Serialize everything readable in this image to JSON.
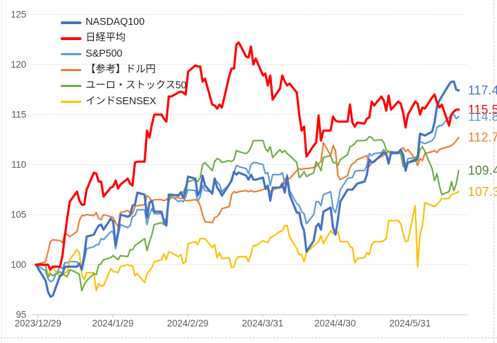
{
  "chart_data": {
    "type": "line",
    "title": "",
    "grid": true,
    "legend_position": "top-left",
    "y_axis": {
      "min": 95,
      "max": 125,
      "ticks": [
        95,
        100,
        105,
        110,
        115,
        120,
        125
      ]
    },
    "x_axis": {
      "tick_labels": [
        {
          "label": "2023/12/29",
          "day": 0
        },
        {
          "label": "2024/1/29",
          "day": 31
        },
        {
          "label": "2024/2/29",
          "day": 62
        },
        {
          "label": "2024/3/31",
          "day": 93
        },
        {
          "label": "2024/4/30",
          "day": 123
        },
        {
          "label": "2024/5/31",
          "day": 154
        }
      ]
    },
    "day_offsets": [
      0,
      4,
      5,
      6,
      7,
      10,
      11,
      12,
      13,
      14,
      17,
      18,
      19,
      20,
      21,
      24,
      25,
      26,
      27,
      28,
      31,
      32,
      33,
      34,
      35,
      38,
      39,
      40,
      41,
      42,
      45,
      46,
      47,
      48,
      49,
      52,
      53,
      54,
      55,
      56,
      59,
      60,
      61,
      62,
      63,
      66,
      67,
      68,
      69,
      70,
      73,
      74,
      75,
      76,
      77,
      80,
      81,
      82,
      83,
      84,
      87,
      88,
      89,
      90,
      91,
      94,
      95,
      96,
      97,
      98,
      101,
      102,
      103,
      104,
      105,
      108,
      109,
      110,
      111,
      112,
      115,
      116,
      117,
      118,
      119,
      122,
      123,
      124,
      125,
      126,
      129,
      130,
      131,
      132,
      133,
      136,
      137,
      138,
      139,
      140,
      143,
      144,
      145,
      146,
      147,
      150,
      151,
      152,
      153,
      154,
      157,
      158,
      159,
      160,
      161,
      164,
      165,
      166,
      167,
      168,
      171,
      172,
      173,
      174,
      175
    ],
    "draw_order": [
      2,
      3,
      5,
      4,
      0,
      1
    ],
    "series": [
      {
        "name": "NASDAQ100",
        "color": "#4472C4",
        "label_color": "#4472C4",
        "width": 3.2,
        "end_label": "117.4",
        "values": [
          100,
          98.4,
          97.3,
          96.8,
          96.9,
          98.9,
          99.1,
          99.8,
          99.8,
          99.8,
          99.8,
          100.1,
          99.5,
          100.9,
          102.8,
          103.0,
          103.5,
          103.9,
          104.0,
          103.5,
          104.6,
          104.3,
          101.9,
          103.2,
          105.0,
          104.8,
          104.9,
          105.9,
          106.0,
          107.2,
          107.0,
          104.7,
          106.2,
          106.4,
          105.3,
          105.3,
          104.3,
          103.9,
          107.0,
          107.0,
          106.9,
          107.2,
          106.7,
          107.4,
          108.8,
          108.6,
          106.9,
          107.4,
          108.9,
          107.9,
          107.1,
          108.6,
          107.7,
          107.4,
          106.9,
          108.0,
          108.4,
          109.3,
          109.0,
          109.2,
          108.9,
          108.5,
          109.0,
          108.5,
          108.5,
          108.7,
          107.6,
          107.9,
          106.4,
          107.7,
          107.7,
          108.1,
          107.2,
          108.8,
          107.0,
          105.2,
          105.2,
          104.0,
          103.4,
          101.3,
          102.4,
          103.8,
          104.1,
          103.5,
          105.3,
          105.7,
          103.7,
          103.0,
          104.5,
          106.3,
          107.5,
          107.5,
          107.5,
          107.8,
          108.1,
          108.3,
          109.0,
          110.5,
          110.2,
          110.3,
          111.0,
          111.2,
          111.1,
          110.1,
          111.2,
          111.2,
          111.5,
          111.0,
          109.4,
          110.2,
          110.4,
          110.7,
          113.1,
          113.0,
          112.9,
          113.3,
          114.2,
          115.8,
          116.4,
          116.8,
          118.0,
          118.3,
          118.3,
          117.5,
          117.4
        ]
      },
      {
        "name": "日経平均",
        "color": "#FF0000",
        "label_color": "#FF0000",
        "width": 3.2,
        "end_label": "115.5",
        "values": [
          100,
          100.0,
          100.0,
          99.5,
          99.8,
          99.8,
          100.9,
          102.9,
          104.7,
          106.3,
          107.3,
          106.4,
          106.0,
          106.0,
          107.5,
          109.2,
          109.1,
          108.3,
          108.3,
          106.8,
          107.7,
          107.8,
          108.4,
          107.6,
          108.0,
          108.6,
          108.1,
          107.9,
          110.2,
          110.3,
          110.3,
          113.4,
          112.7,
          114.0,
          115.0,
          115.0,
          114.6,
          114.3,
          116.8,
          116.8,
          117.2,
          117.3,
          117.2,
          117.0,
          119.3,
          119.9,
          119.8,
          119.8,
          118.3,
          118.6,
          116.0,
          115.9,
          115.6,
          116.0,
          115.7,
          118.8,
          119.6,
          119.6,
          122.0,
          122.2,
          120.8,
          120.7,
          121.8,
          120.0,
          120.6,
          118.9,
          119.1,
          117.9,
          118.9,
          116.5,
          117.6,
          118.9,
          118.3,
          117.9,
          118.1,
          117.2,
          115.0,
          113.4,
          113.8,
          110.8,
          111.9,
          112.2,
          114.9,
          112.4,
          113.4,
          113.4,
          114.8,
          114.4,
          114.3,
          114.3,
          114.3,
          116.0,
          114.2,
          113.8,
          114.2,
          114.1,
          114.6,
          114.7,
          116.3,
          115.9,
          116.8,
          116.4,
          115.4,
          116.9,
          115.5,
          116.3,
          116.1,
          115.2,
          113.7,
          115.0,
          116.3,
          116.1,
          115.0,
          115.7,
          115.6,
          116.7,
          117.0,
          116.2,
          115.7,
          116.0,
          113.9,
          115.0,
          115.3,
          115.5,
          115.5
        ]
      },
      {
        "name": "S&P500",
        "color": "#5B9BD5",
        "label_color": "#5B9BD5",
        "width": 2.2,
        "end_label": "114.8",
        "values": [
          100,
          99.4,
          98.6,
          98.3,
          98.4,
          99.8,
          99.6,
          100.2,
          100.2,
          100.3,
          100.3,
          100.0,
          99.5,
          100.4,
          101.6,
          101.8,
          102.0,
          102.0,
          102.6,
          102.5,
          103.3,
          103.3,
          101.6,
          102.9,
          104.0,
          103.7,
          103.9,
          104.8,
          104.9,
          105.5,
          105.5,
          104.0,
          105.0,
          105.6,
          105.1,
          105.1,
          104.5,
          104.6,
          106.8,
          106.9,
          106.3,
          106.4,
          106.3,
          106.8,
          107.5,
          107.4,
          106.3,
          106.8,
          107.9,
          107.4,
          107.3,
          108.5,
          108.3,
          108.0,
          107.3,
          108.0,
          108.6,
          109.2,
          109.9,
          109.8,
          109.6,
          109.1,
          110.0,
          110.2,
          110.2,
          110.0,
          109.1,
          109.2,
          107.9,
          109.0,
          109.0,
          109.2,
          108.1,
          109.0,
          107.4,
          106.1,
          105.9,
          105.3,
          105.1,
          104.1,
          105.0,
          106.3,
          106.3,
          105.9,
          107.0,
          107.3,
          105.6,
          105.2,
          106.2,
          107.5,
          108.6,
          108.7,
          108.7,
          109.3,
          109.4,
          109.4,
          109.9,
          111.1,
          110.9,
          111.1,
          111.2,
          111.5,
          111.2,
          110.4,
          111.1,
          111.1,
          111.2,
          110.4,
          109.8,
          110.6,
          110.7,
          110.9,
          112.3,
          112.2,
          112.1,
          112.4,
          112.7,
          113.7,
          113.9,
          113.9,
          114.7,
          115.0,
          115.0,
          114.6,
          114.8
        ]
      },
      {
        "name": "【参考】ドル円",
        "color": "#ED7D31",
        "label_color": "#ED7D31",
        "width": 2.2,
        "end_label": "112.7",
        "values": [
          100,
          100.3,
          101.3,
          102.3,
          102.5,
          102.4,
          102.2,
          103.2,
          103.0,
          102.8,
          103.3,
          104.4,
          104.9,
          104.9,
          105.0,
          104.9,
          105.2,
          104.6,
          104.5,
          105.0,
          104.8,
          104.7,
          104.2,
          103.8,
          105.2,
          105.4,
          105.2,
          105.1,
          105.8,
          105.9,
          106.0,
          106.9,
          106.7,
          106.3,
          106.5,
          106.5,
          106.4,
          106.5,
          106.7,
          106.7,
          106.7,
          106.6,
          106.7,
          106.4,
          106.4,
          106.5,
          106.4,
          105.9,
          105.0,
          104.3,
          104.2,
          104.7,
          104.8,
          105.1,
          105.6,
          105.8,
          107.0,
          107.3,
          107.2,
          107.3,
          107.4,
          107.3,
          107.4,
          107.3,
          107.3,
          107.5,
          107.6,
          107.5,
          107.3,
          107.5,
          107.7,
          107.7,
          108.6,
          108.6,
          108.6,
          109.4,
          109.6,
          109.5,
          109.6,
          109.6,
          109.7,
          109.8,
          110.1,
          110.3,
          112.2,
          110.9,
          111.9,
          111.4,
          108.9,
          108.5,
          108.9,
          109.7,
          110.1,
          110.2,
          110.5,
          110.8,
          110.9,
          109.8,
          110.2,
          110.4,
          110.8,
          110.9,
          111.2,
          111.3,
          111.3,
          111.2,
          111.4,
          111.7,
          111.3,
          111.5,
          110.6,
          109.9,
          110.6,
          110.4,
          111.1,
          111.3,
          111.4,
          111.2,
          111.5,
          111.6,
          111.8,
          111.9,
          112.1,
          112.4,
          112.7
        ]
      },
      {
        "name": "ユーロ・ストックス50",
        "color": "#70AD47",
        "label_color": "#548235",
        "width": 2.2,
        "end_label": "109.4",
        "values": [
          100,
          99.9,
          98.7,
          99.1,
          98.9,
          99.3,
          99.1,
          98.9,
          98.8,
          99.5,
          99.2,
          99.0,
          97.4,
          98.0,
          98.4,
          99.1,
          99.0,
          100.0,
          100.1,
          100.5,
          100.7,
          100.9,
          100.7,
          100.5,
          100.9,
          100.8,
          101.5,
          101.5,
          101.9,
          102.1,
          102.6,
          101.4,
          102.3,
          103.0,
          104.0,
          104.2,
          104.0,
          104.6,
          106.3,
          106.9,
          107.0,
          107.3,
          107.2,
          107.8,
          108.3,
          108.5,
          108.3,
          108.7,
          110.0,
          110.2,
          109.4,
          110.3,
          110.6,
          110.5,
          110.2,
          110.4,
          110.3,
          110.5,
          111.4,
          111.3,
          111.1,
          111.3,
          111.7,
          112.4,
          112.4,
          112.4,
          111.6,
          111.3,
          111.8,
          110.7,
          111.5,
          111.2,
          111.4,
          111.1,
          110.9,
          110.2,
          108.7,
          108.9,
          109.3,
          108.8,
          109.2,
          110.3,
          109.9,
          109.4,
          110.7,
          110.9,
          110.2,
          110.2,
          109.9,
          110.5,
          111.0,
          111.8,
          111.9,
          112.1,
          112.4,
          112.4,
          112.5,
          112.8,
          112.7,
          112.4,
          112.5,
          112.2,
          111.5,
          111.3,
          111.1,
          111.3,
          111.1,
          109.8,
          110.1,
          110.2,
          110.6,
          110.4,
          111.5,
          111.8,
          111.3,
          109.6,
          108.4,
          109.1,
          107.9,
          107.0,
          107.3,
          108.3,
          107.4,
          108.1,
          109.4
        ]
      },
      {
        "name": "インドSENSEX",
        "color": "#FFC000",
        "label_color": "#EDAC00",
        "width": 2.2,
        "end_label": "107.3",
        "values": [
          100,
          100.0,
          98.8,
          99.5,
          99.7,
          98.8,
          98.9,
          99.2,
          99.3,
          100.5,
          101.5,
          101.2,
          99.0,
          98.5,
          99.2,
          99.2,
          97.4,
          98.1,
          97.9,
          97.9,
          99.6,
          99.3,
          99.3,
          99.2,
          99.8,
          100.0,
          99.9,
          99.9,
          98.9,
          99.1,
          98.2,
          99.1,
          99.4,
          99.7,
          100.3,
          100.5,
          101.1,
          100.5,
          101.3,
          101.2,
          100.8,
          101.0,
          100.1,
          100.3,
          102.1,
          102.3,
          102.0,
          102.6,
          102.6,
          102.6,
          101.7,
          102.0,
          100.7,
          101.2,
          100.6,
          100.7,
          99.7,
          99.8,
          100.6,
          100.8,
          100.8,
          100.3,
          101.0,
          101.9,
          101.9,
          102.4,
          102.3,
          102.2,
          102.7,
          102.8,
          103.3,
          103.4,
          103.9,
          103.9,
          102.8,
          101.6,
          101.0,
          101.0,
          100.3,
          101.2,
          101.9,
          102.1,
          102.3,
          102.9,
          102.1,
          103.4,
          103.1,
          103.1,
          103.3,
          102.3,
          102.3,
          101.8,
          101.7,
          100.2,
          100.6,
          100.7,
          101.2,
          101.0,
          102.0,
          102.3,
          102.3,
          102.4,
          102.6,
          104.4,
          104.4,
          104.4,
          104.1,
          103.1,
          102.3,
          102.4,
          105.9,
          99.8,
          103.0,
          103.9,
          106.2,
          105.9,
          105.8,
          106.0,
          106.3,
          106.6,
          106.6,
          107.0,
          107.1,
          107.2,
          107.3
        ]
      }
    ]
  },
  "styles": {
    "gridline_color": "#D9D9D9",
    "axis_line_color": "#C6C6C6",
    "axis_label_color": "#595959",
    "legend_text_color": "#262626",
    "background": "#FFFFFF"
  }
}
